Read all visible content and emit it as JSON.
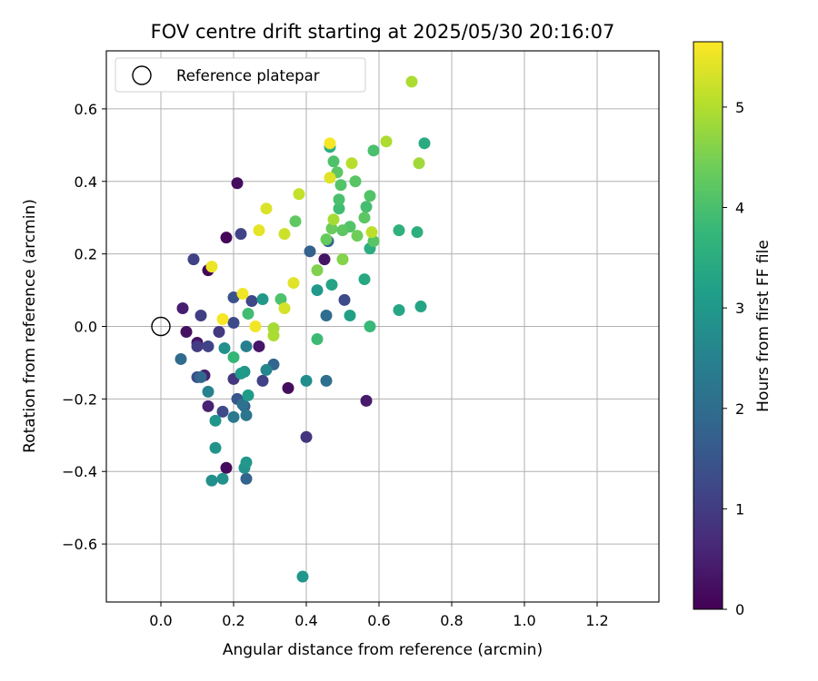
{
  "chart_data": {
    "type": "scatter",
    "title": "FOV centre drift starting at 2025/05/30 20:16:07",
    "xlabel": "Angular distance from reference (arcmin)",
    "ylabel": "Rotation from reference (arcmin)",
    "xlim": [
      -0.15,
      1.37
    ],
    "ylim": [
      -0.76,
      0.76
    ],
    "xticks": [
      0.0,
      0.2,
      0.4,
      0.6,
      0.8,
      1.0,
      1.2
    ],
    "xtick_labels": [
      "0.0",
      "0.2",
      "0.4",
      "0.6",
      "0.8",
      "1.0",
      "1.2"
    ],
    "yticks": [
      -0.6,
      -0.4,
      -0.2,
      0.0,
      0.2,
      0.4,
      0.6
    ],
    "ytick_labels": [
      "−0.6",
      "−0.4",
      "−0.2",
      "0.0",
      "0.2",
      "0.4",
      "0.6"
    ],
    "grid": true,
    "legend": {
      "placement": "top-left",
      "entries": [
        {
          "label": "Reference platepar",
          "marker": "open-circle"
        }
      ]
    },
    "reference_point": {
      "x": 0.0,
      "y": 0.0
    },
    "colorbar": {
      "label": "Hours from first FF file",
      "colormap": "viridis",
      "range": [
        0,
        5.65
      ],
      "ticks": [
        0,
        1,
        2,
        3,
        4,
        5
      ],
      "tick_labels": [
        "0",
        "1",
        "2",
        "3",
        "4",
        "5"
      ]
    },
    "points": [
      {
        "x": 0.21,
        "y": 0.395,
        "c": 0.2
      },
      {
        "x": 0.18,
        "y": 0.245,
        "c": 0.1
      },
      {
        "x": 0.13,
        "y": 0.155,
        "c": 0.05
      },
      {
        "x": 0.06,
        "y": 0.05,
        "c": 0.45
      },
      {
        "x": 0.07,
        "y": -0.015,
        "c": 0.25
      },
      {
        "x": 0.1,
        "y": -0.045,
        "c": 0.3
      },
      {
        "x": 0.12,
        "y": -0.135,
        "c": 0.5
      },
      {
        "x": 0.13,
        "y": -0.22,
        "c": 0.55
      },
      {
        "x": 0.18,
        "y": -0.39,
        "c": 0.15
      },
      {
        "x": 0.27,
        "y": -0.055,
        "c": 0.35
      },
      {
        "x": 0.35,
        "y": -0.17,
        "c": 0.2
      },
      {
        "x": 0.45,
        "y": 0.185,
        "c": 0.3
      },
      {
        "x": 0.565,
        "y": -0.205,
        "c": 0.4
      },
      {
        "x": 0.4,
        "y": -0.305,
        "c": 0.85
      },
      {
        "x": 0.09,
        "y": 0.185,
        "c": 1.1
      },
      {
        "x": 0.22,
        "y": 0.255,
        "c": 1.15
      },
      {
        "x": 0.11,
        "y": 0.03,
        "c": 1.05
      },
      {
        "x": 0.16,
        "y": -0.015,
        "c": 0.95
      },
      {
        "x": 0.1,
        "y": -0.055,
        "c": 1.0
      },
      {
        "x": 0.13,
        "y": -0.055,
        "c": 1.15
      },
      {
        "x": 0.1,
        "y": -0.14,
        "c": 1.35
      },
      {
        "x": 0.17,
        "y": -0.235,
        "c": 1.25
      },
      {
        "x": 0.2,
        "y": -0.145,
        "c": 0.9
      },
      {
        "x": 0.2,
        "y": 0.08,
        "c": 1.4
      },
      {
        "x": 0.2,
        "y": 0.01,
        "c": 1.3
      },
      {
        "x": 0.25,
        "y": 0.07,
        "c": 1.2
      },
      {
        "x": 0.28,
        "y": -0.15,
        "c": 1.1
      },
      {
        "x": 0.21,
        "y": -0.2,
        "c": 1.5
      },
      {
        "x": 0.23,
        "y": -0.22,
        "c": 1.6
      },
      {
        "x": 0.505,
        "y": 0.073,
        "c": 1.25
      },
      {
        "x": 0.41,
        "y": 0.207,
        "c": 1.75
      },
      {
        "x": 0.46,
        "y": 0.235,
        "c": 1.85
      },
      {
        "x": 0.055,
        "y": -0.09,
        "c": 1.95
      },
      {
        "x": 0.11,
        "y": -0.14,
        "c": 1.9
      },
      {
        "x": 0.235,
        "y": -0.42,
        "c": 1.8
      },
      {
        "x": 0.31,
        "y": -0.105,
        "c": 1.85
      },
      {
        "x": 0.455,
        "y": 0.03,
        "c": 2.0
      },
      {
        "x": 0.455,
        "y": -0.15,
        "c": 2.05
      },
      {
        "x": 0.225,
        "y": -0.215,
        "c": 2.1
      },
      {
        "x": 0.235,
        "y": -0.245,
        "c": 2.2
      },
      {
        "x": 0.2,
        "y": -0.25,
        "c": 2.3
      },
      {
        "x": 0.235,
        "y": -0.055,
        "c": 2.45
      },
      {
        "x": 0.13,
        "y": -0.18,
        "c": 2.5
      },
      {
        "x": 0.29,
        "y": -0.12,
        "c": 2.6
      },
      {
        "x": 0.4,
        "y": -0.15,
        "c": 2.75
      },
      {
        "x": 0.14,
        "y": -0.425,
        "c": 2.8
      },
      {
        "x": 0.17,
        "y": -0.42,
        "c": 2.85
      },
      {
        "x": 0.15,
        "y": -0.335,
        "c": 2.9
      },
      {
        "x": 0.15,
        "y": -0.26,
        "c": 2.95
      },
      {
        "x": 0.23,
        "y": -0.39,
        "c": 2.9
      },
      {
        "x": 0.235,
        "y": -0.375,
        "c": 3.0
      },
      {
        "x": 0.23,
        "y": -0.125,
        "c": 2.95
      },
      {
        "x": 0.22,
        "y": -0.13,
        "c": 3.05
      },
      {
        "x": 0.175,
        "y": -0.06,
        "c": 2.85
      },
      {
        "x": 0.24,
        "y": -0.19,
        "c": 3.1
      },
      {
        "x": 0.28,
        "y": 0.075,
        "c": 3.0
      },
      {
        "x": 0.39,
        "y": -0.69,
        "c": 2.95
      },
      {
        "x": 0.52,
        "y": 0.03,
        "c": 3.2
      },
      {
        "x": 0.43,
        "y": 0.1,
        "c": 3.0
      },
      {
        "x": 0.47,
        "y": 0.115,
        "c": 3.3
      },
      {
        "x": 0.655,
        "y": 0.045,
        "c": 3.35
      },
      {
        "x": 0.715,
        "y": 0.055,
        "c": 3.3
      },
      {
        "x": 0.56,
        "y": 0.13,
        "c": 3.4
      },
      {
        "x": 0.575,
        "y": 0.215,
        "c": 3.5
      },
      {
        "x": 0.725,
        "y": 0.505,
        "c": 3.45
      },
      {
        "x": 0.705,
        "y": 0.26,
        "c": 3.55
      },
      {
        "x": 0.655,
        "y": 0.265,
        "c": 3.6
      },
      {
        "x": 0.465,
        "y": 0.495,
        "c": 3.55
      },
      {
        "x": 0.575,
        "y": 0.0,
        "c": 3.8
      },
      {
        "x": 0.2,
        "y": -0.085,
        "c": 3.75
      },
      {
        "x": 0.24,
        "y": 0.035,
        "c": 3.9
      },
      {
        "x": 0.33,
        "y": 0.075,
        "c": 4.05
      },
      {
        "x": 0.43,
        "y": -0.035,
        "c": 3.85
      },
      {
        "x": 0.49,
        "y": 0.325,
        "c": 3.9
      },
      {
        "x": 0.49,
        "y": 0.35,
        "c": 4.0
      },
      {
        "x": 0.52,
        "y": 0.275,
        "c": 4.1
      },
      {
        "x": 0.565,
        "y": 0.33,
        "c": 3.95
      },
      {
        "x": 0.56,
        "y": 0.3,
        "c": 4.2
      },
      {
        "x": 0.585,
        "y": 0.235,
        "c": 4.15
      },
      {
        "x": 0.575,
        "y": 0.36,
        "c": 4.1
      },
      {
        "x": 0.585,
        "y": 0.485,
        "c": 4.0
      },
      {
        "x": 0.475,
        "y": 0.455,
        "c": 4.05
      },
      {
        "x": 0.485,
        "y": 0.425,
        "c": 4.2
      },
      {
        "x": 0.495,
        "y": 0.39,
        "c": 4.1
      },
      {
        "x": 0.535,
        "y": 0.4,
        "c": 4.15
      },
      {
        "x": 0.37,
        "y": 0.29,
        "c": 4.25
      },
      {
        "x": 0.455,
        "y": 0.24,
        "c": 4.3
      },
      {
        "x": 0.47,
        "y": 0.27,
        "c": 4.35
      },
      {
        "x": 0.5,
        "y": 0.265,
        "c": 4.2
      },
      {
        "x": 0.54,
        "y": 0.25,
        "c": 4.4
      },
      {
        "x": 0.43,
        "y": 0.155,
        "c": 4.55
      },
      {
        "x": 0.5,
        "y": 0.185,
        "c": 4.6
      },
      {
        "x": 0.475,
        "y": 0.295,
        "c": 4.9
      },
      {
        "x": 0.31,
        "y": -0.005,
        "c": 4.9
      },
      {
        "x": 0.31,
        "y": -0.025,
        "c": 4.95
      },
      {
        "x": 0.58,
        "y": 0.26,
        "c": 5.1
      },
      {
        "x": 0.525,
        "y": 0.45,
        "c": 5.05
      },
      {
        "x": 0.38,
        "y": 0.365,
        "c": 5.15
      },
      {
        "x": 0.62,
        "y": 0.51,
        "c": 4.95
      },
      {
        "x": 0.71,
        "y": 0.45,
        "c": 4.85
      },
      {
        "x": 0.69,
        "y": 0.675,
        "c": 4.95
      },
      {
        "x": 0.34,
        "y": 0.255,
        "c": 5.25
      },
      {
        "x": 0.465,
        "y": 0.41,
        "c": 5.4
      },
      {
        "x": 0.465,
        "y": 0.505,
        "c": 5.6
      },
      {
        "x": 0.29,
        "y": 0.325,
        "c": 5.35
      },
      {
        "x": 0.27,
        "y": 0.265,
        "c": 5.45
      },
      {
        "x": 0.14,
        "y": 0.165,
        "c": 5.5
      },
      {
        "x": 0.225,
        "y": 0.09,
        "c": 5.55
      },
      {
        "x": 0.17,
        "y": 0.02,
        "c": 5.6
      },
      {
        "x": 0.26,
        "y": 0.0,
        "c": 5.55
      },
      {
        "x": 0.34,
        "y": 0.05,
        "c": 5.3
      },
      {
        "x": 0.365,
        "y": 0.12,
        "c": 5.4
      }
    ]
  }
}
